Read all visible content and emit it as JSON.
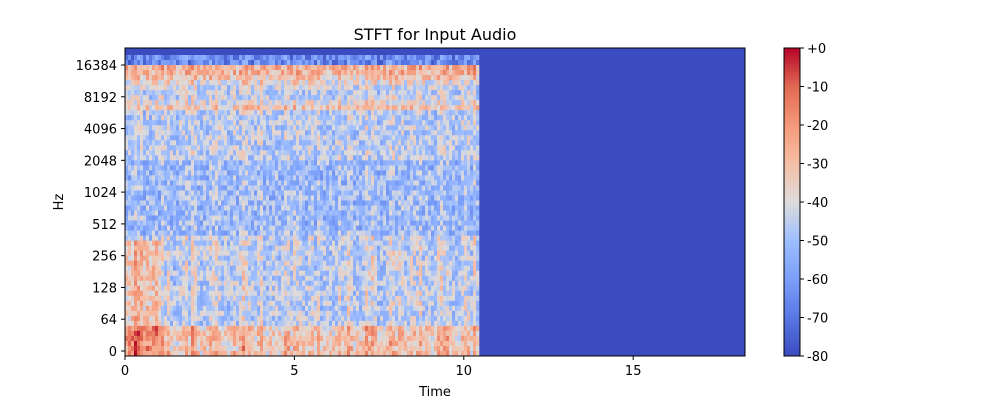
{
  "chart_data": {
    "type": "heatmap",
    "title": "STFT for Input Audio",
    "xlabel": "Time",
    "ylabel": "Hz",
    "x_ticks": [
      0,
      5,
      10,
      15
    ],
    "y_scale": "symlog",
    "y_ticks": [
      {
        "value": 0,
        "label": "0"
      },
      {
        "value": 64,
        "label": "64"
      },
      {
        "value": 128,
        "label": "128"
      },
      {
        "value": 256,
        "label": "256"
      },
      {
        "value": 512,
        "label": "512"
      },
      {
        "value": 1024,
        "label": "1024"
      },
      {
        "value": 2048,
        "label": "2048"
      },
      {
        "value": 4096,
        "label": "4096"
      },
      {
        "value": 8192,
        "label": "8192"
      },
      {
        "value": 16384,
        "label": "16384"
      }
    ],
    "xlim": [
      0,
      18.3
    ],
    "signal_end_time": 10.45,
    "colormap": "coolwarm",
    "colorbar": {
      "ticks": [
        {
          "value": 0,
          "label": "+0"
        },
        {
          "value": -10,
          "label": "-10"
        },
        {
          "value": -20,
          "label": "-20"
        },
        {
          "value": -30,
          "label": "-30"
        },
        {
          "value": -40,
          "label": "-40"
        },
        {
          "value": -50,
          "label": "-50"
        },
        {
          "value": -60,
          "label": "-60"
        },
        {
          "value": -70,
          "label": "-70"
        },
        {
          "value": -80,
          "label": "-80"
        }
      ],
      "range": [
        -80,
        0
      ]
    },
    "background_color": "#3b4cc0"
  }
}
